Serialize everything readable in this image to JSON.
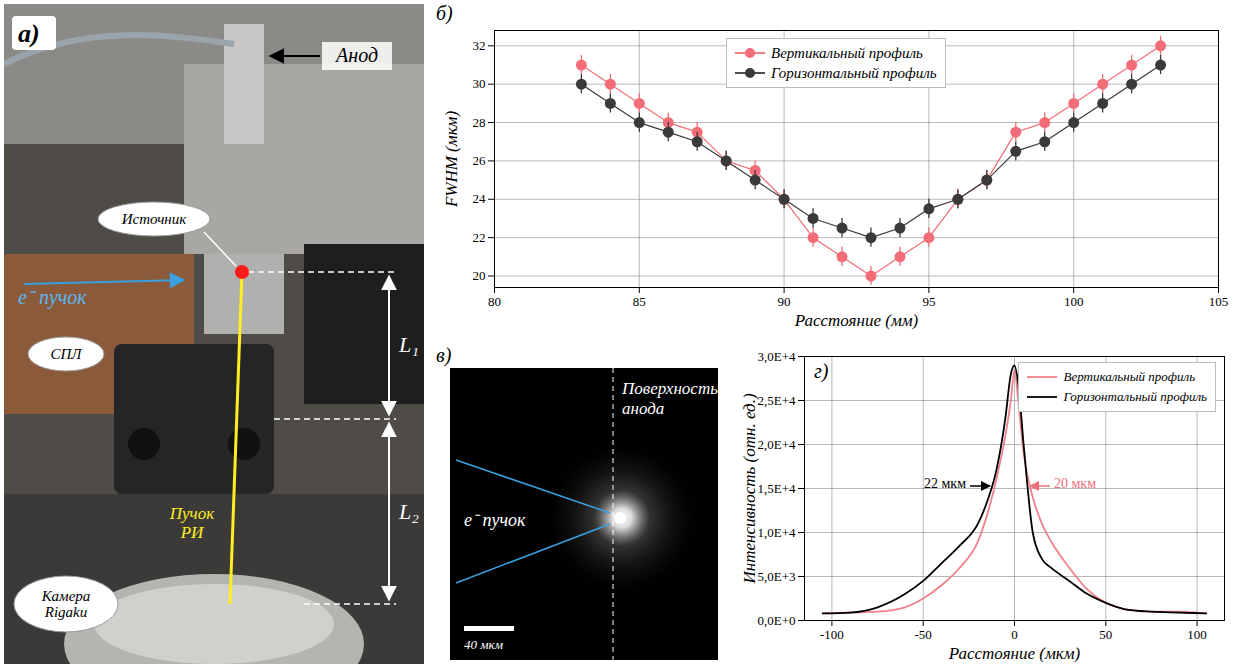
{
  "chart_data": [
    {
      "type": "line",
      "title": "б)",
      "x_label": "Расстояние (мм)",
      "y_label": "FWHM (мкм)",
      "x": [
        83,
        84,
        85,
        86,
        87,
        88,
        89,
        90,
        91,
        92,
        93,
        94,
        95,
        96,
        97,
        98,
        99,
        100,
        101,
        102,
        103
      ],
      "series": [
        {
          "name": "Вертикальный профиль",
          "color": "#f26d77",
          "marker": "circle",
          "values": [
            31,
            30,
            29,
            28,
            27.5,
            26,
            25.5,
            24,
            22,
            21,
            20,
            21,
            22,
            24,
            25,
            27.5,
            28,
            29,
            30,
            31,
            32
          ],
          "errors": [
            0.5,
            0.5,
            0.5,
            0.5,
            0.5,
            0.5,
            0.5,
            0.5,
            0.5,
            0.5,
            0.5,
            0.5,
            0.5,
            0.5,
            0.5,
            0.5,
            0.5,
            0.5,
            0.5,
            0.5,
            0.5
          ]
        },
        {
          "name": "Горизонтальный профиль",
          "color": "#3a3a3a",
          "marker": "circle",
          "values": [
            30,
            29,
            28,
            27.5,
            27,
            26,
            25,
            24,
            23,
            22.5,
            22,
            22.5,
            23.5,
            24,
            25,
            26.5,
            27,
            28,
            29,
            30,
            31
          ],
          "errors": [
            0.5,
            0.5,
            0.5,
            0.5,
            0.5,
            0.5,
            0.5,
            0.5,
            0.5,
            0.5,
            0.5,
            0.5,
            0.5,
            0.5,
            0.5,
            0.5,
            0.5,
            0.5,
            0.5,
            0.5,
            0.5
          ]
        }
      ],
      "xlim": [
        80,
        105
      ],
      "xticks": [
        80,
        85,
        90,
        95,
        100,
        105
      ],
      "ylim": [
        19.4,
        32.8
      ],
      "yticks": [
        20,
        22,
        24,
        26,
        28,
        30,
        32
      ],
      "grid": true,
      "legend": "top"
    },
    {
      "type": "line",
      "title": "г)",
      "x_label": "Расстояние (мкм)",
      "y_label": "Интенсивность (отн. ед.)",
      "x": [
        -105,
        -90,
        -75,
        -60,
        -50,
        -40,
        -30,
        -20,
        -15,
        -10,
        -5,
        -2,
        0,
        2,
        5,
        10,
        15,
        20,
        30,
        40,
        50,
        60,
        75,
        90,
        105
      ],
      "series": [
        {
          "name": "Вертикальный профиль",
          "color": "#f0808a",
          "values": [
            800,
            900,
            1000,
            1500,
            2500,
            4000,
            6000,
            9000,
            12000,
            16000,
            21000,
            25000,
            28500,
            25000,
            19000,
            14000,
            11000,
            9000,
            6000,
            3500,
            2000,
            1300,
            1000,
            1000,
            800
          ]
        },
        {
          "name": "Горизонтальный профиль",
          "color": "#000000",
          "values": [
            800,
            900,
            1500,
            3000,
            4500,
            6500,
            8500,
            11000,
            13500,
            17000,
            23000,
            28000,
            29000,
            27000,
            20000,
            10000,
            7000,
            6000,
            4500,
            3000,
            2000,
            1300,
            1000,
            900,
            800
          ]
        }
      ],
      "xlim": [
        -115,
        115
      ],
      "xticks": [
        -100,
        -50,
        0,
        50,
        100
      ],
      "ylim": [
        0,
        30000
      ],
      "yticks": [
        {
          "value": 0,
          "label": "0,0E+0"
        },
        {
          "value": 5000,
          "label": "5,0E+3"
        },
        {
          "value": 10000,
          "label": "1,0E+4"
        },
        {
          "value": 15000,
          "label": "1,5E+4"
        },
        {
          "value": 20000,
          "label": "2,0E+4"
        },
        {
          "value": 25000,
          "label": "2,5E+4"
        },
        {
          "value": 30000,
          "label": "3,0E+4"
        }
      ],
      "grid": true,
      "legend": "top-right",
      "annotations": [
        {
          "text": "22 мкм",
          "color": "#000000"
        },
        {
          "text": "20 мкм",
          "color": "#f0707a"
        }
      ]
    }
  ],
  "photo": {
    "letter": "а)",
    "labels": {
      "anode": "Анод",
      "source": "Источник",
      "e_beam": "e⁻ пучок",
      "lens": "СПЛ",
      "l1": "L₁",
      "l2": "L₂",
      "xray_beam": "Пучок РИ",
      "camera": "Камера Rigaku"
    }
  },
  "image": {
    "letter": "в)",
    "surface": "Поверхность анода",
    "e_beam": "e⁻ пучок",
    "scale_bar": "40 мкм"
  }
}
